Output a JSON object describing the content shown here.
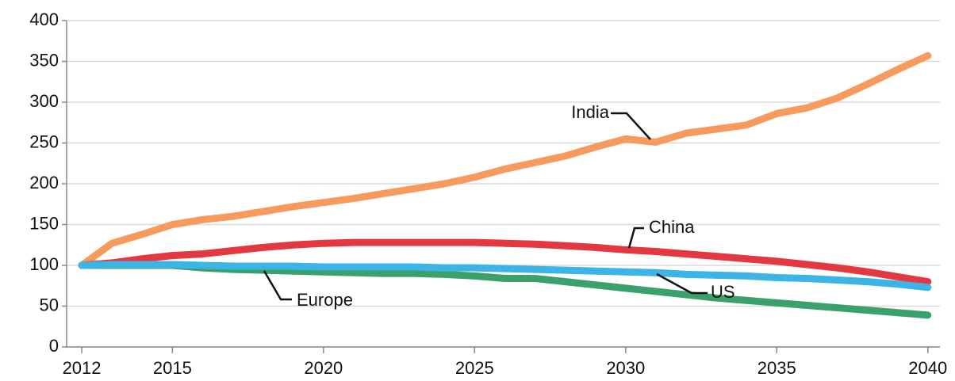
{
  "chart_data": {
    "type": "line",
    "x": [
      2012,
      2013,
      2014,
      2015,
      2016,
      2017,
      2018,
      2019,
      2020,
      2021,
      2022,
      2023,
      2024,
      2025,
      2026,
      2027,
      2028,
      2029,
      2030,
      2031,
      2032,
      2033,
      2034,
      2035,
      2036,
      2037,
      2038,
      2039,
      2040
    ],
    "series": [
      {
        "name": "India",
        "color": "#f79a5e",
        "values": [
          100,
          127,
          138,
          150,
          156,
          160,
          166,
          172,
          177,
          182,
          188,
          194,
          200,
          208,
          218,
          226,
          234,
          245,
          255,
          251,
          262,
          267,
          272,
          286,
          293,
          305,
          322,
          340,
          357
        ]
      },
      {
        "name": "China",
        "color": "#e3383f",
        "values": [
          100,
          103,
          108,
          112,
          114,
          118,
          122,
          125,
          127,
          128,
          128,
          128,
          128,
          128,
          127,
          126,
          124,
          122,
          119,
          117,
          114,
          111,
          108,
          105,
          101,
          97,
          92,
          86,
          80
        ]
      },
      {
        "name": "Europe",
        "color": "#3ba16c",
        "values": [
          100,
          100,
          100,
          100,
          97,
          95,
          94,
          93,
          92,
          91,
          90,
          90,
          89,
          87,
          84,
          84,
          80,
          76,
          72,
          68,
          64,
          60,
          57,
          54,
          51,
          48,
          45,
          42,
          39
        ]
      },
      {
        "name": "US",
        "color": "#3cb4e5",
        "values": [
          100,
          101,
          101,
          101,
          100,
          99,
          99,
          99,
          98,
          98,
          98,
          98,
          97,
          97,
          96,
          95,
          94,
          93,
          92,
          91,
          89,
          88,
          87,
          85,
          84,
          82,
          80,
          77,
          73
        ]
      }
    ],
    "xlim": [
      2011.5,
      2040.4
    ],
    "xticks": [
      2012,
      2015,
      2020,
      2025,
      2030,
      2035,
      2040
    ],
    "ylim": [
      0,
      400
    ],
    "yticks": [
      0,
      50,
      100,
      150,
      200,
      250,
      300,
      350,
      400
    ],
    "grid": true
  }
}
